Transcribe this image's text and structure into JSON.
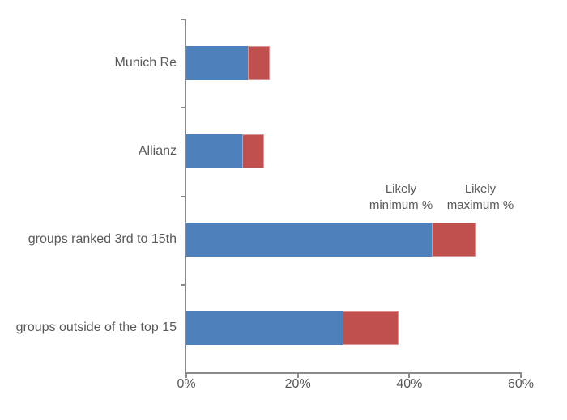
{
  "chart_data": {
    "type": "bar",
    "orientation": "horizontal",
    "title": "",
    "categories": [
      "Munich Re",
      "Allianz",
      "groups ranked 3rd to 15th",
      "groups outside of the top 15"
    ],
    "series": [
      {
        "name": "Likely minimum %",
        "color": "#4e80bc",
        "values": [
          11,
          10,
          44,
          28
        ]
      },
      {
        "name": "Likely maximum %",
        "color": "#c0504d",
        "values": [
          15,
          14,
          52,
          38
        ]
      }
    ],
    "note": "Blue bar spans 0 to likely minimum; red segment spans likely minimum to likely maximum",
    "x_axis": {
      "min": 0,
      "max": 60,
      "tick_labels": [
        "0%",
        "20%",
        "40%",
        "60%"
      ],
      "tick_values": [
        0,
        20,
        40,
        60
      ]
    },
    "grid": "off",
    "legend": "none",
    "annotations": [
      {
        "line1": "Likely",
        "line2": "minimum %"
      },
      {
        "line1": "Likely",
        "line2": "maximum %"
      }
    ],
    "colors": {
      "bar_min": "#4e80bc",
      "bar_max": "#c0504d",
      "bar_max_border": "#d99694",
      "axis": "#8a8a8a",
      "text": "#595959",
      "background": "#ffffff"
    }
  }
}
